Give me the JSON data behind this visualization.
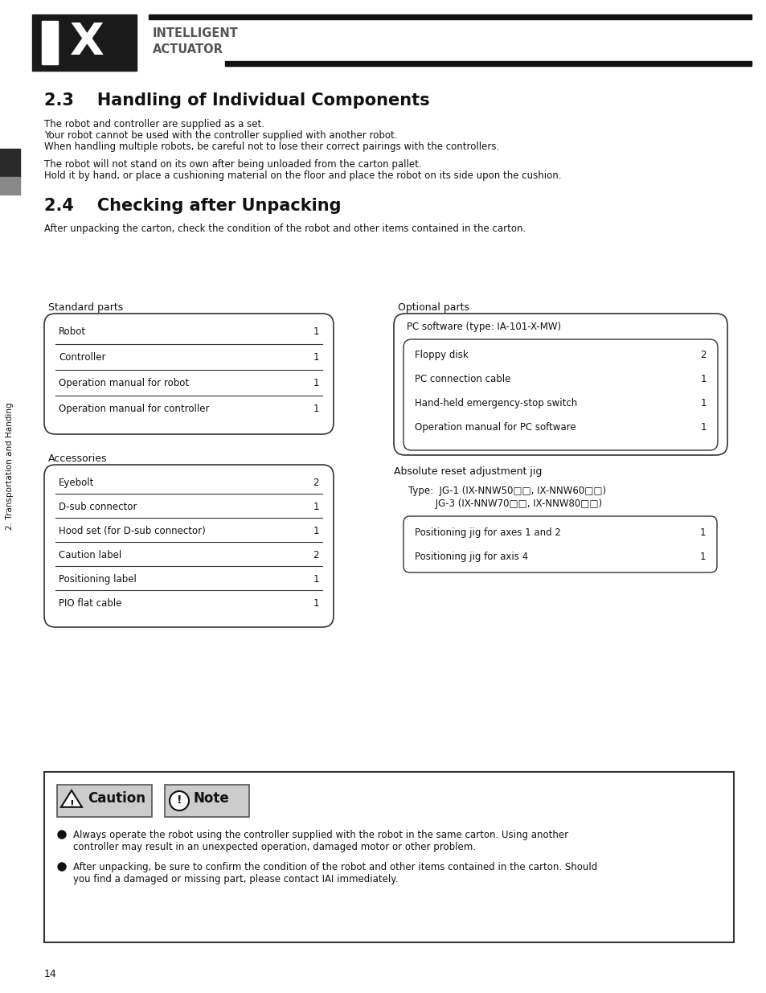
{
  "bg_color": "#ffffff",
  "text_color": "#111111",
  "gray_text": "#555555",
  "section_23_title": "2.3    Handling of Individual Components",
  "section_23_body": [
    "The robot and controller are supplied as a set.",
    "Your robot cannot be used with the controller supplied with another robot.",
    "When handling multiple robots, be careful not to lose their correct pairings with the controllers.",
    "",
    "The robot will not stand on its own after being unloaded from the carton pallet.",
    "Hold it by hand, or place a cushioning material on the floor and place the robot on its side upon the cushion."
  ],
  "section_24_title": "2.4    Checking after Unpacking",
  "section_24_body": "After unpacking the carton, check the condition of the robot and other items contained in the carton.",
  "standard_parts_label": "Standard parts",
  "standard_parts": [
    [
      "Robot",
      "1"
    ],
    [
      "Controller",
      "1"
    ],
    [
      "Operation manual for robot",
      "1"
    ],
    [
      "Operation manual for controller",
      "1"
    ]
  ],
  "optional_parts_label": "Optional parts",
  "optional_parts_header": "PC software (type: IA-101-X-MW)",
  "optional_parts": [
    [
      "Floppy disk",
      "2"
    ],
    [
      "PC connection cable",
      "1"
    ],
    [
      "Hand-held emergency-stop switch",
      "1"
    ],
    [
      "Operation manual for PC software",
      "1"
    ]
  ],
  "accessories_label": "Accessories",
  "accessories": [
    [
      "Eyebolt",
      "2"
    ],
    [
      "D-sub connector",
      "1"
    ],
    [
      "Hood set (for D-sub connector)",
      "1"
    ],
    [
      "Caution label",
      "2"
    ],
    [
      "Positioning label",
      "1"
    ],
    [
      "PIO flat cable",
      "1"
    ]
  ],
  "abs_reset_label": "Absolute reset adjustment jig",
  "abs_reset_type": "Type:  JG-1 (IX-NNW50□□, IX-NNW60□□)",
  "abs_reset_type2": "         JG-3 (IX-NNW70□□, IX-NNW80□□)",
  "abs_reset_items": [
    [
      "Positioning jig for axes 1 and 2",
      "1"
    ],
    [
      "Positioning jig for axis 4",
      "1"
    ]
  ],
  "caution_note_box": {
    "caution_label": "Caution",
    "note_label": "Note",
    "bullets": [
      "Always operate the robot using the controller supplied with the robot in the same carton. Using another controller may result in an unexpected operation, damaged motor or other problem.",
      "After unpacking, be sure to confirm the condition of the robot and other items contained in the carton. Should you find a damaged or missing part, please contact IAI immediately."
    ]
  },
  "sidebar_text": "2. Transportation and Handing",
  "page_number": "14",
  "logo_text1": "INTELLIGENT",
  "logo_text2": "ACTUATOR"
}
